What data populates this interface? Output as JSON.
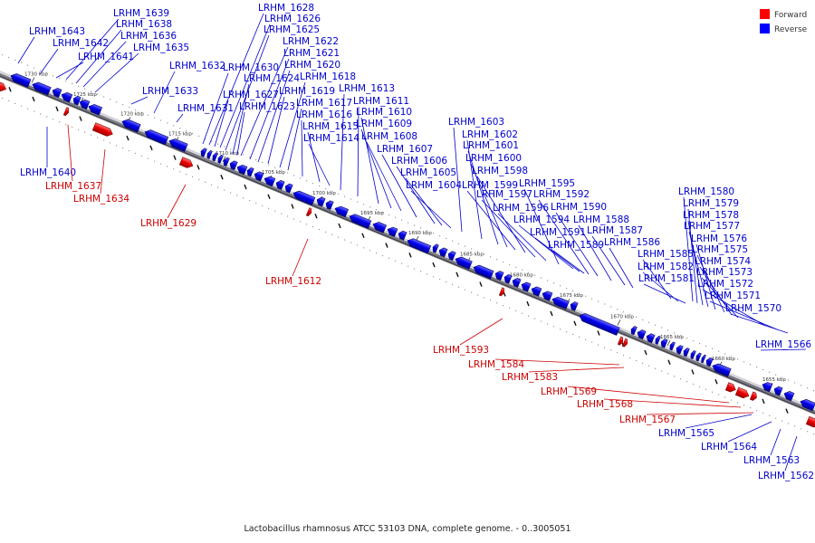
{
  "caption": "Lactobacillus rhamnosus ATCC 53103 DNA, complete genome. - 0..3005051",
  "legend": {
    "forward_label": "Forward",
    "reverse_label": "Reverse",
    "forward_color": "#ff0000",
    "reverse_color": "#0000ff"
  },
  "ticks": [
    "1730 kbp",
    "1725 kbp",
    "1720 kbp",
    "1715 kbp",
    "1710 kbp",
    "1705 kbp",
    "1700 kbp",
    "1695 kbp",
    "1690 kbp",
    "1685 kbp",
    "1680 kbp",
    "1675 kbp",
    "1670 kbp",
    "1665 kbp",
    "1660 kbp",
    "1655 kbp"
  ],
  "labels": {
    "LRHM_1643": "LRHM_1643",
    "LRHM_1642": "LRHM_1642",
    "LRHM_1639": "LRHM_1639",
    "LRHM_1638": "LRHM_1638",
    "LRHM_1636": "LRHM_1636",
    "LRHM_1641": "LRHM_1641",
    "LRHM_1635": "LRHM_1635",
    "LRHM_1632": "LRHM_1632",
    "LRHM_1633": "LRHM_1633",
    "LRHM_1631": "LRHM_1631",
    "LRHM_1630": "LRHM_1630",
    "LRHM_1628": "LRHM_1628",
    "LRHM_1626": "LRHM_1626",
    "LRHM_1625": "LRHM_1625",
    "LRHM_1622": "LRHM_1622",
    "LRHM_1621": "LRHM_1621",
    "LRHM_1620": "LRHM_1620",
    "LRHM_1624": "LRHM_1624",
    "LRHM_1618": "LRHM_1618",
    "LRHM_1627": "LRHM_1627",
    "LRHM_1619": "LRHM_1619",
    "LRHM_1623": "LRHM_1623",
    "LRHM_1617": "LRHM_1617",
    "LRHM_1616": "LRHM_1616",
    "LRHM_1615": "LRHM_1615",
    "LRHM_1614": "LRHM_1614",
    "LRHM_1613": "LRHM_1613",
    "LRHM_1611": "LRHM_1611",
    "LRHM_1610": "LRHM_1610",
    "LRHM_1609": "LRHM_1609",
    "LRHM_1608": "LRHM_1608",
    "LRHM_1607": "LRHM_1607",
    "LRHM_1606": "LRHM_1606",
    "LRHM_1605": "LRHM_1605",
    "LRHM_1604": "LRHM_1604",
    "LRHM_1603": "LRHM_1603",
    "LRHM_1602": "LRHM_1602",
    "LRHM_1601": "LRHM_1601",
    "LRHM_1600": "LRHM_1600",
    "LRHM_1598": "LRHM_1598",
    "LRHM_1599": "LRHM_1599",
    "LRHM_1597": "LRHM_1597",
    "LRHM_1596": "LRHM_1596",
    "LRHM_1595": "LRHM_1595",
    "LRHM_1592": "LRHM_1592",
    "LRHM_1594": "LRHM_1594",
    "LRHM_1590": "LRHM_1590",
    "LRHM_1591": "LRHM_1591",
    "LRHM_1588": "LRHM_1588",
    "LRHM_1589": "LRHM_1589",
    "LRHM_1587": "LRHM_1587",
    "LRHM_1586": "LRHM_1586",
    "LRHM_1580": "LRHM_1580",
    "LRHM_1579": "LRHM_1579",
    "LRHM_1578": "LRHM_1578",
    "LRHM_1577": "LRHM_1577",
    "LRHM_1576": "LRHM_1576",
    "LRHM_1575": "LRHM_1575",
    "LRHM_1574": "LRHM_1574",
    "LRHM_1573": "LRHM_1573",
    "LRHM_1572": "LRHM_1572",
    "LRHM_1585": "LRHM_1585",
    "LRHM_1582": "LRHM_1582",
    "LRHM_1581": "LRHM_1581",
    "LRHM_1571": "LRHM_1571",
    "LRHM_1570": "LRHM_1570",
    "LRHM_1566": "LRHM_1566",
    "LRHM_1565": "LRHM_1565",
    "LRHM_1564": "LRHM_1564",
    "LRHM_1563": "LRHM_1563",
    "LRHM_1562": "LRHM_1562",
    "LRHM_1640": "LRHM_1640",
    "LRHM_1637": "LRHM_1637",
    "LRHM_1634": "LRHM_1634",
    "LRHM_1629": "LRHM_1629",
    "LRHM_1612": "LRHM_1612",
    "LRHM_1593": "LRHM_1593",
    "LRHM_1584": "LRHM_1584",
    "LRHM_1583": "LRHM_1583",
    "LRHM_1569": "LRHM_1569",
    "LRHM_1568": "LRHM_1568",
    "LRHM_1567": "LRHM_1567"
  }
}
